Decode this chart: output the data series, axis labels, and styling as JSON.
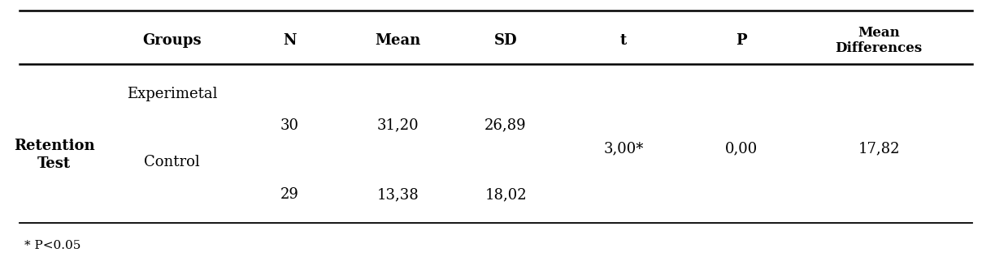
{
  "col_headers": [
    "Groups",
    "N",
    "Mean",
    "SD",
    "t",
    "P",
    "Mean\nDifferences"
  ],
  "row_label": "Retention\nTest",
  "row1_group": "Experimetal",
  "row1_N": "30",
  "row1_mean": "31,20",
  "row1_sd": "26,89",
  "row2_group": "Control",
  "row2_N": "29",
  "row2_mean": "13,38",
  "row2_sd": "18,02",
  "shared_t": "3,00*",
  "shared_P": "0,00",
  "shared_md": "17,82",
  "footnote": "* P<0.05",
  "bg_color": "#ffffff",
  "text_color": "#000000",
  "header_fontsize": 13,
  "cell_fontsize": 13,
  "footnote_fontsize": 11
}
